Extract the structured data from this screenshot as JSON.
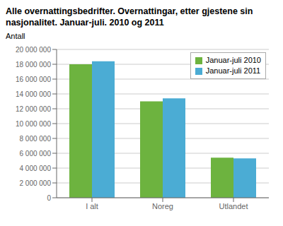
{
  "chart_data": {
    "type": "bar",
    "title": "Alle overnattingsbedrifter. Overnattingar, etter gjestene sin nasjonalitet. Januar-juli. 2010 og 2011",
    "y_label": "Antall",
    "categories": [
      "I alt",
      "Noreg",
      "Utlandet"
    ],
    "series": [
      {
        "name": "Januar-juli 2010",
        "color": "#6db33f",
        "values": [
          18000000,
          13000000,
          5400000
        ]
      },
      {
        "name": "Januar-juli 2011",
        "color": "#4bacd4",
        "values": [
          18400000,
          13400000,
          5300000
        ]
      }
    ],
    "ylim": [
      0,
      20000000
    ],
    "yticks": [
      0,
      {
        "value": 2000000,
        "label": "2 000 000"
      },
      {
        "value": 4000000,
        "label": "4 000 000"
      },
      {
        "value": 6000000,
        "label": "6 000 000"
      },
      {
        "value": 8000000,
        "label": "8 000 000"
      },
      {
        "value": 10000000,
        "label": "10 000 000"
      },
      {
        "value": 12000000,
        "label": "12 000 000"
      },
      {
        "value": 14000000,
        "label": "14 000 000"
      },
      {
        "value": 16000000,
        "label": "16 000 000"
      },
      {
        "value": 18000000,
        "label": "18 000 000"
      },
      {
        "value": 20000000,
        "label": "20 000 000"
      }
    ],
    "grid": true,
    "legend": "upper right"
  }
}
